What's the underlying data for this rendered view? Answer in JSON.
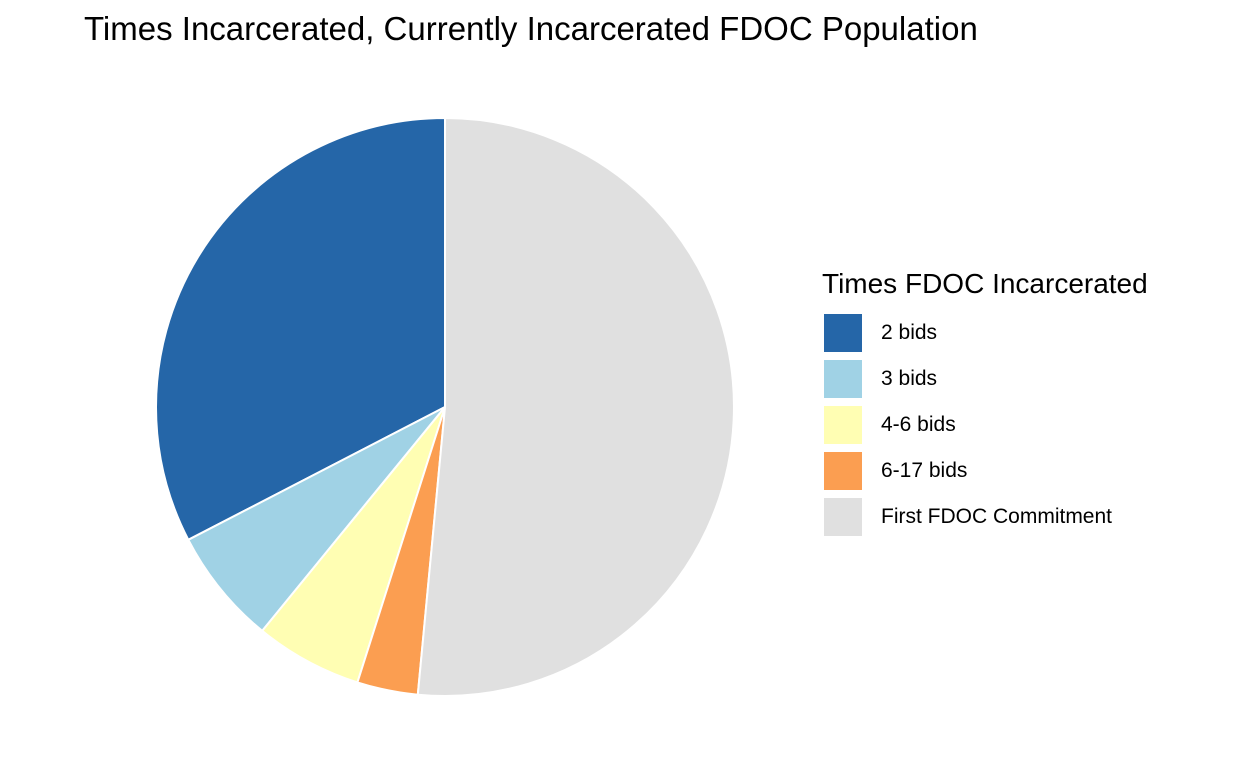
{
  "chart_data": {
    "type": "pie",
    "title": "Times Incarcerated, Currently Incarcerated FDOC Population",
    "legend_title": "Times FDOC Incarcerated",
    "legend_position": "right",
    "start_angle": "12 o'clock",
    "direction": "counterclockwise",
    "slices": [
      {
        "label": "2 bids",
        "value": 32.6,
        "color": "#2566A8"
      },
      {
        "label": "3 bids",
        "value": 6.5,
        "color": "#A0D2E5"
      },
      {
        "label": "4-6 bids",
        "value": 6.0,
        "color": "#FFFEB3"
      },
      {
        "label": "6-17 bids",
        "value": 3.4,
        "color": "#FB9E51"
      },
      {
        "label": "First FDOC Commitment",
        "value": 51.5,
        "color": "#E0E0E0"
      }
    ]
  }
}
